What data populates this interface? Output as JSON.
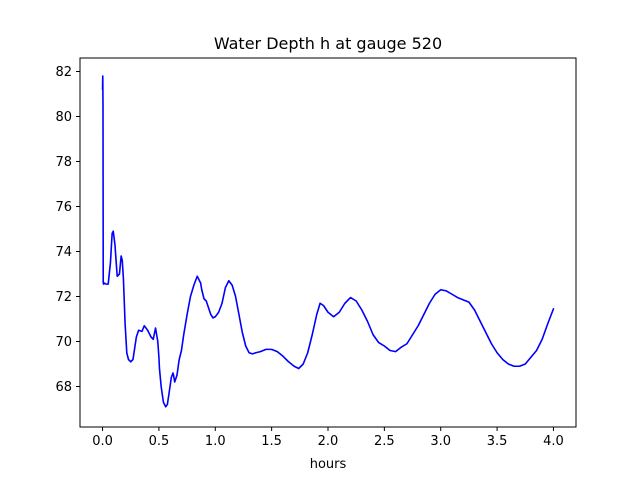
{
  "chart_data": {
    "type": "line",
    "title": "Water Depth h at gauge 520",
    "xlabel": "hours",
    "ylabel": "",
    "xlim": [
      -0.2,
      4.2
    ],
    "ylim": [
      66.2,
      82.6
    ],
    "xticks": [
      0.0,
      0.5,
      1.0,
      1.5,
      2.0,
      2.5,
      3.0,
      3.5,
      4.0
    ],
    "xtick_labels": [
      "0.0",
      "0.5",
      "1.0",
      "1.5",
      "2.0",
      "2.5",
      "3.0",
      "3.5",
      "4.0"
    ],
    "yticks": [
      68,
      70,
      72,
      74,
      76,
      78,
      80,
      82
    ],
    "ytick_labels": [
      "68",
      "70",
      "72",
      "74",
      "76",
      "78",
      "80",
      "82"
    ],
    "grid": false,
    "series": [
      {
        "color": "#0000ff",
        "x": [
          0.0,
          0.002,
          0.004,
          0.006,
          0.01,
          0.015,
          0.03,
          0.05,
          0.07,
          0.085,
          0.095,
          0.11,
          0.13,
          0.15,
          0.165,
          0.175,
          0.185,
          0.2,
          0.215,
          0.23,
          0.25,
          0.27,
          0.3,
          0.32,
          0.35,
          0.37,
          0.4,
          0.43,
          0.45,
          0.47,
          0.49,
          0.5,
          0.505,
          0.52,
          0.54,
          0.56,
          0.575,
          0.59,
          0.61,
          0.625,
          0.63,
          0.64,
          0.66,
          0.68,
          0.7,
          0.72,
          0.75,
          0.78,
          0.81,
          0.84,
          0.87,
          0.88,
          0.9,
          0.92,
          0.94,
          0.96,
          0.98,
          1.0,
          1.03,
          1.06,
          1.09,
          1.12,
          1.15,
          1.18,
          1.21,
          1.24,
          1.27,
          1.3,
          1.33,
          1.36,
          1.4,
          1.45,
          1.5,
          1.55,
          1.6,
          1.65,
          1.7,
          1.74,
          1.78,
          1.82,
          1.86,
          1.9,
          1.93,
          1.96,
          2.0,
          2.05,
          2.1,
          2.15,
          2.2,
          2.25,
          2.3,
          2.35,
          2.4,
          2.45,
          2.5,
          2.55,
          2.6,
          2.65,
          2.7,
          2.75,
          2.8,
          2.85,
          2.9,
          2.95,
          3.0,
          3.05,
          3.1,
          3.15,
          3.2,
          3.25,
          3.3,
          3.35,
          3.4,
          3.45,
          3.5,
          3.55,
          3.6,
          3.65,
          3.7,
          3.75,
          3.8,
          3.85,
          3.9,
          3.95,
          4.0
        ],
        "y": [
          81.2,
          81.8,
          80.5,
          72.6,
          72.55,
          72.6,
          72.55,
          72.55,
          73.5,
          74.8,
          74.9,
          74.3,
          72.9,
          73.0,
          73.8,
          73.6,
          72.8,
          70.8,
          69.5,
          69.2,
          69.1,
          69.2,
          70.2,
          70.5,
          70.45,
          70.7,
          70.5,
          70.2,
          70.1,
          70.6,
          70.0,
          69.3,
          68.8,
          68.0,
          67.3,
          67.1,
          67.2,
          67.7,
          68.4,
          68.6,
          68.5,
          68.2,
          68.5,
          69.2,
          69.6,
          70.3,
          71.2,
          72.0,
          72.5,
          72.9,
          72.6,
          72.3,
          71.9,
          71.8,
          71.5,
          71.2,
          71.05,
          71.1,
          71.3,
          71.7,
          72.4,
          72.7,
          72.5,
          72.0,
          71.2,
          70.4,
          69.8,
          69.5,
          69.45,
          69.5,
          69.55,
          69.65,
          69.65,
          69.55,
          69.35,
          69.1,
          68.9,
          68.8,
          69.0,
          69.5,
          70.3,
          71.2,
          71.7,
          71.6,
          71.3,
          71.1,
          71.3,
          71.7,
          71.95,
          71.8,
          71.4,
          70.9,
          70.3,
          69.95,
          69.8,
          69.6,
          69.55,
          69.75,
          69.9,
          70.3,
          70.7,
          71.2,
          71.7,
          72.1,
          72.3,
          72.25,
          72.1,
          71.95,
          71.85,
          71.75,
          71.4,
          70.9,
          70.4,
          69.9,
          69.5,
          69.2,
          69.0,
          68.9,
          68.9,
          69.0,
          69.3,
          69.6,
          70.1,
          70.8,
          71.45
        ]
      }
    ]
  }
}
